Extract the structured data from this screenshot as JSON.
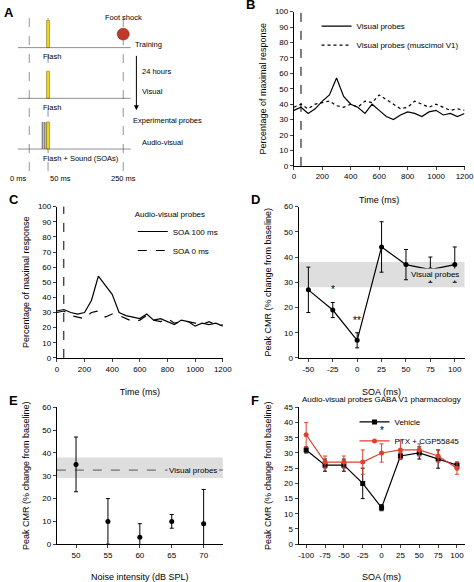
{
  "diagram": {
    "panel": "A",
    "time_marks": [
      {
        "value": 0,
        "label": "0 ms"
      },
      {
        "value": 50,
        "label": "50 ms"
      },
      {
        "value": 250,
        "label": "250 ms"
      }
    ],
    "rows": [
      {
        "label": "Flash",
        "flash": 50,
        "shock": 250,
        "shock_label": "Foot shock",
        "stage": "Training"
      },
      {
        "label": "Flash",
        "flash": 50,
        "stage": "Visual"
      },
      {
        "label": "Flash + Sound (SOAs)",
        "flash": 50,
        "sounds": [
          35,
          40,
          45
        ],
        "stage": "Audio-visual"
      }
    ],
    "interval": "24 hours",
    "probes": "Experimental probes"
  },
  "chart_data": [
    {
      "panel": "B",
      "type": "line",
      "xlabel": "Time (ms)",
      "ylabel": "Percentage of maximal response",
      "x": [
        0,
        50,
        100,
        150,
        200,
        250,
        300,
        350,
        400,
        450,
        500,
        550,
        600,
        650,
        700,
        750,
        800,
        850,
        900,
        950,
        1000,
        1050,
        1100,
        1150,
        1200
      ],
      "series": [
        {
          "name": "Visual probes",
          "color": "#000000",
          "line_style": "solid",
          "values": [
            36,
            38,
            34,
            37,
            42,
            46,
            57,
            45,
            40,
            38,
            34,
            40,
            36,
            32,
            30,
            33,
            35,
            34,
            32,
            35,
            36,
            33,
            34,
            32,
            34
          ]
        },
        {
          "name": "Visual probes (muscimol V1)",
          "color": "#000000",
          "line_style": "dot",
          "values": [
            38,
            40,
            37,
            40,
            41,
            42,
            39,
            38,
            40,
            38,
            42,
            41,
            46,
            43,
            40,
            37,
            38,
            42,
            40,
            38,
            40,
            38,
            36,
            37,
            36
          ]
        }
      ],
      "onset": 50,
      "xlim": [
        0,
        1200
      ],
      "xticks": [
        0,
        200,
        400,
        600,
        800,
        1000,
        1200
      ],
      "ylim": [
        0,
        100
      ],
      "yticks": [
        0,
        10,
        20,
        30,
        40,
        50,
        60,
        70,
        80,
        90,
        100
      ],
      "grid": false,
      "legend": "upper right"
    },
    {
      "panel": "C",
      "type": "line",
      "xlabel": "Time (ms)",
      "ylabel": "Percentage of maximal response",
      "legend_title": "Audio-visual probes",
      "x": [
        0,
        50,
        100,
        150,
        200,
        250,
        300,
        350,
        400,
        450,
        500,
        550,
        600,
        650,
        700,
        750,
        800,
        850,
        900,
        950,
        1000,
        1050,
        1100,
        1150,
        1200
      ],
      "series": [
        {
          "name": "SOA 100 ms",
          "color": "#000000",
          "line_style": "solid",
          "values": [
            31,
            32,
            30,
            29,
            30,
            38,
            54,
            48,
            42,
            30,
            28,
            27,
            26,
            29,
            25,
            26,
            24,
            22,
            25,
            24,
            21,
            23,
            22,
            23,
            21
          ]
        },
        {
          "name": "SOA 0 ms",
          "color": "#000000",
          "line_style": "dash",
          "values": [
            30,
            31,
            28,
            27,
            26,
            30,
            31,
            27,
            29,
            28,
            26,
            24,
            25,
            28,
            25,
            24,
            26,
            23,
            24,
            24,
            23,
            22,
            24,
            22,
            22
          ]
        }
      ],
      "onset": 50,
      "xlim": [
        0,
        1200
      ],
      "xticks": [
        0,
        200,
        400,
        600,
        800,
        1000,
        1200
      ],
      "ylim": [
        0,
        100
      ],
      "yticks": [
        0,
        10,
        20,
        30,
        40,
        50,
        60,
        70,
        80,
        90,
        100
      ],
      "grid": false,
      "legend": "upper right"
    },
    {
      "panel": "D",
      "type": "line",
      "xlabel": "SOA (ms)",
      "ylabel": "Peak CMR (% change from baseline)",
      "x": [
        -50,
        -25,
        0,
        25,
        50,
        75,
        100
      ],
      "series": [
        {
          "color": "#000000",
          "marker": "circle",
          "line_style": "solid",
          "values": [
            27,
            19,
            7,
            44,
            37,
            35,
            37
          ],
          "errors": [
            9,
            3,
            3,
            10,
            6,
            5,
            7
          ]
        }
      ],
      "reference": {
        "label": "Visual probes",
        "low": 28,
        "high": 38
      },
      "annotations": [
        {
          "x": -25,
          "y": 24,
          "text": "*"
        },
        {
          "x": 0,
          "y": 12,
          "text": "**"
        }
      ],
      "xlim": [
        -60,
        110
      ],
      "xticks": [
        -50,
        -25,
        0,
        25,
        50,
        75,
        100
      ],
      "ylim": [
        0,
        60
      ],
      "yticks": [
        0,
        10,
        20,
        30,
        40,
        50,
        60
      ],
      "grid": false
    },
    {
      "panel": "E",
      "type": "scatter",
      "xlabel": "Noise intensity (dB SPL)",
      "ylabel": "Peak CMR (% change from baseline)",
      "x": [
        50,
        55,
        60,
        65,
        70
      ],
      "series": [
        {
          "color": "#000000",
          "marker": "circle",
          "values": [
            35,
            10,
            3,
            10,
            9
          ],
          "errors": [
            12,
            10,
            6,
            3,
            15
          ]
        }
      ],
      "reference": {
        "label": "Visual probes",
        "low": 29,
        "high": 38,
        "mean": 32.5,
        "line_style": "dash"
      },
      "xlim": [
        47,
        73
      ],
      "xticks": [
        50,
        55,
        60,
        65,
        70
      ],
      "ylim": [
        0,
        60
      ],
      "yticks": [
        0,
        10,
        20,
        30,
        40,
        50,
        60
      ],
      "grid": false
    },
    {
      "panel": "F",
      "type": "line",
      "title": "Audio-visual probes GABA V1 pharmacology",
      "xlabel": "SOA (ms)",
      "ylabel": "Peak CMR (% change from baseline)",
      "x": [
        -100,
        -75,
        -50,
        -25,
        0,
        25,
        50,
        75,
        100
      ],
      "series": [
        {
          "name": "Vehicle",
          "color": "#000000",
          "marker": "square",
          "line_style": "solid",
          "values": [
            31,
            26,
            26,
            20,
            12,
            29,
            30,
            28,
            26
          ],
          "errors": [
            1,
            2,
            2,
            5,
            1,
            1,
            2,
            3,
            1
          ]
        },
        {
          "name": "PTX + CGP55845",
          "color": "#e0412f",
          "marker": "circle",
          "line_style": "solid",
          "values": [
            36,
            27,
            27,
            27,
            30,
            31,
            31,
            29,
            25
          ],
          "errors": [
            4,
            2,
            2,
            4,
            3,
            3,
            2,
            2,
            2
          ]
        }
      ],
      "annotations": [
        {
          "x": 0,
          "y": 35,
          "text": "*"
        }
      ],
      "xlim": [
        -110,
        110
      ],
      "xticks": [
        -100,
        -75,
        -50,
        -25,
        0,
        25,
        50,
        75,
        100
      ],
      "ylim": [
        0,
        45
      ],
      "yticks": [
        0,
        5,
        10,
        15,
        20,
        25,
        30,
        35,
        40,
        45
      ],
      "grid": false,
      "legend": "upper right"
    }
  ]
}
